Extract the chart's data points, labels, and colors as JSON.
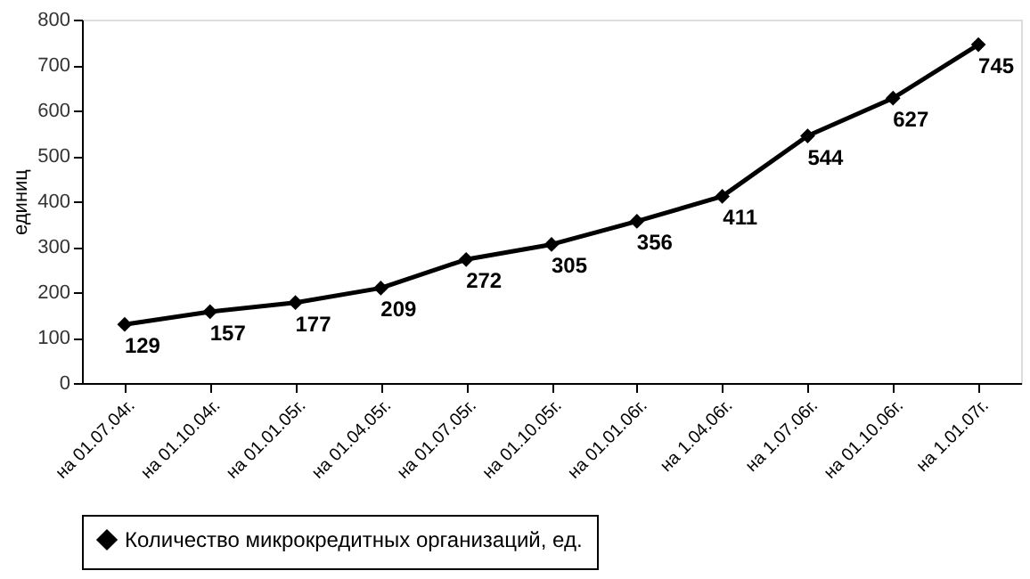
{
  "chart_data": {
    "type": "line",
    "ylabel": "единиц",
    "categories": [
      "на 01.07.04г.",
      "на 01.10.04г.",
      "на 01.01.05г.",
      "на 01.04.05г.",
      "на 01.07.05г.",
      "на 01.10.05г.",
      "на 01.01.06г.",
      "на 1.04.06г.",
      "на 1.07.06г.",
      "на 01.10.06г.",
      "на 1.01.07г."
    ],
    "series": [
      {
        "name": "Количество микрокредитных организаций, ед.",
        "color": "#000000",
        "values": [
          129,
          157,
          177,
          209,
          272,
          305,
          356,
          411,
          544,
          627,
          745
        ]
      }
    ],
    "ylim": [
      0,
      800
    ],
    "yticks": [
      0,
      100,
      200,
      300,
      400,
      500,
      600,
      700,
      800
    ],
    "data_labels": true,
    "marker": "diamond",
    "line_style": "solid",
    "legend": "bottom",
    "grid": false
  }
}
